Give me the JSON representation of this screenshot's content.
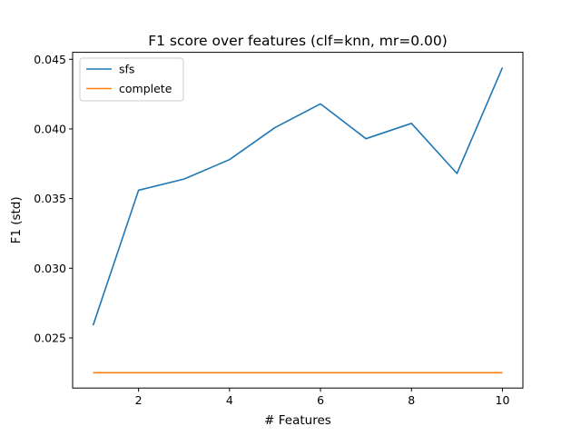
{
  "chart_data": {
    "type": "line",
    "title": "F1 score over features (clf=knn, mr=0.00)",
    "xlabel": "# Features",
    "ylabel": "F1 (std)",
    "x": [
      1,
      2,
      3,
      4,
      5,
      6,
      7,
      8,
      9,
      10
    ],
    "xlim": [
      0.55,
      10.45
    ],
    "ylim": [
      0.0214,
      0.0455
    ],
    "xticks": [
      2,
      4,
      6,
      8,
      10
    ],
    "xtick_labels": [
      "2",
      "4",
      "6",
      "8",
      "10"
    ],
    "yticks": [
      0.025,
      0.03,
      0.035,
      0.04,
      0.045
    ],
    "ytick_labels": [
      "0.025",
      "0.030",
      "0.035",
      "0.040",
      "0.045"
    ],
    "grid": false,
    "legend_position": "top-left",
    "series": [
      {
        "name": "sfs",
        "color": "#1f77b4",
        "values": [
          0.0259,
          0.0356,
          0.0364,
          0.0378,
          0.0401,
          0.0418,
          0.0393,
          0.0404,
          0.0368,
          0.0444
        ]
      },
      {
        "name": "complete",
        "color": "#ff7f0e",
        "values": [
          0.0225,
          0.0225,
          0.0225,
          0.0225,
          0.0225,
          0.0225,
          0.0225,
          0.0225,
          0.0225,
          0.0225
        ]
      }
    ]
  }
}
